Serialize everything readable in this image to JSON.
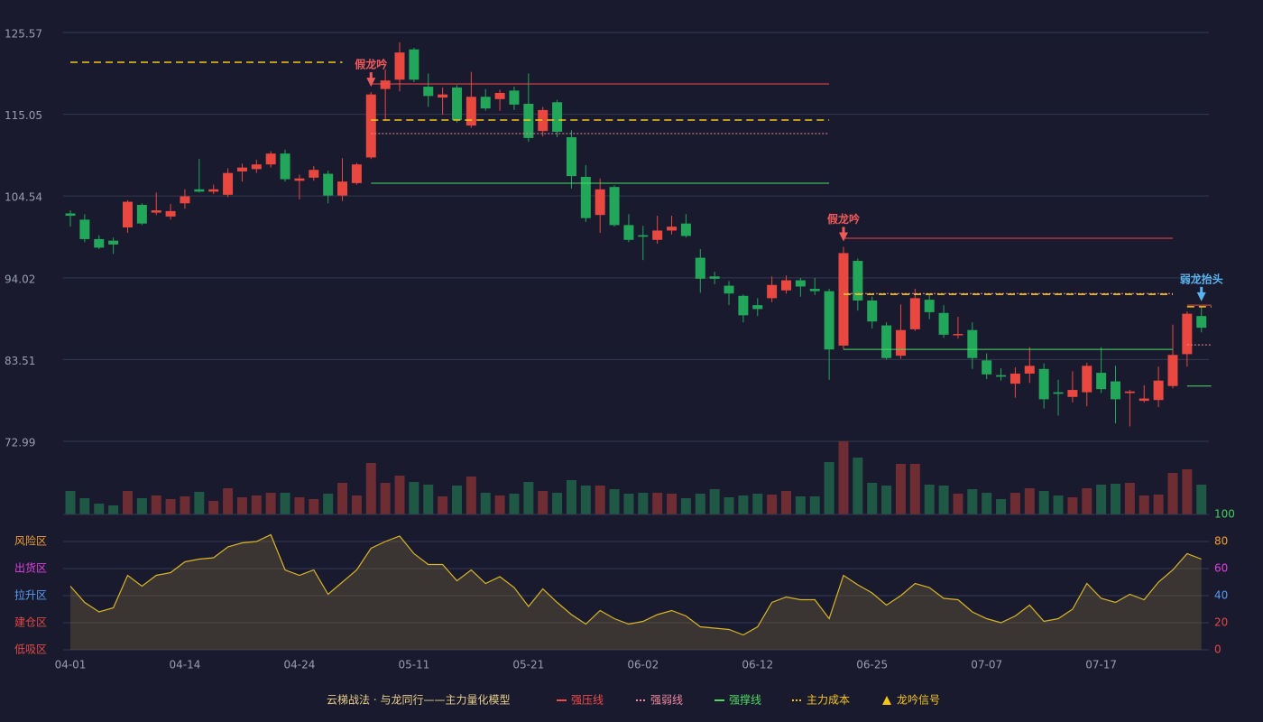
{
  "chart_data": {
    "type": "candlestick",
    "title": "云梯战法 · 与龙同行——主力量化模型",
    "categories": [
      "04-01",
      null,
      null,
      null,
      null,
      null,
      null,
      null,
      "04-14",
      null,
      null,
      null,
      null,
      null,
      null,
      null,
      "04-24",
      null,
      null,
      null,
      null,
      null,
      null,
      null,
      "05-11",
      null,
      null,
      null,
      null,
      null,
      null,
      null,
      "05-21",
      null,
      null,
      null,
      null,
      null,
      null,
      null,
      "06-02",
      null,
      null,
      null,
      null,
      null,
      null,
      null,
      "06-12",
      null,
      null,
      null,
      null,
      null,
      null,
      null,
      "06-25",
      null,
      null,
      null,
      null,
      null,
      null,
      null,
      "07-07",
      null,
      null,
      null,
      null,
      null,
      null,
      null,
      "07-17",
      null,
      null,
      null,
      null,
      null,
      null,
      null
    ],
    "open": [
      102.3,
      101.5,
      99.0,
      98.8,
      100.5,
      103.4,
      102.4,
      101.9,
      103.6,
      105.4,
      105.1,
      104.7,
      107.7,
      108.0,
      108.6,
      110.0,
      106.5,
      106.9,
      107.4,
      104.6,
      106.2,
      109.5,
      118.3,
      119.5,
      123.4,
      118.6,
      117.2,
      118.5,
      113.6,
      117.3,
      117.0,
      118.1,
      116.4,
      112.9,
      116.6,
      112.1,
      107.0,
      102.1,
      105.7,
      100.8,
      99.5,
      98.9,
      100.1,
      101.0,
      96.6,
      94.2,
      93.0,
      91.7,
      90.5,
      91.4,
      92.4,
      93.7,
      92.6,
      92.3,
      85.3,
      96.2,
      91.1,
      87.9,
      84.0,
      87.4,
      91.2,
      89.5,
      86.7,
      87.3,
      83.4,
      81.5,
      80.4,
      81.7,
      82.3,
      79.3,
      78.7,
      79.3,
      81.8,
      80.7,
      79.2,
      78.2,
      78.3,
      80.1,
      84.2,
      89.1
    ],
    "high": [
      102.7,
      102.2,
      99.5,
      99.2,
      104.0,
      103.6,
      105.0,
      103.5,
      105.4,
      109.3,
      106.0,
      108.1,
      108.7,
      109.2,
      110.3,
      110.5,
      107.3,
      108.4,
      107.8,
      109.4,
      108.8,
      117.9,
      120.8,
      124.3,
      123.6,
      120.3,
      118.5,
      118.8,
      120.5,
      118.3,
      118.2,
      118.6,
      120.3,
      116.0,
      116.9,
      113.0,
      108.5,
      106.8,
      105.9,
      102.2,
      100.7,
      102.0,
      102.0,
      102.2,
      97.7,
      94.8,
      93.6,
      91.9,
      91.4,
      94.2,
      94.3,
      94.0,
      94.0,
      92.6,
      98.0,
      96.5,
      91.6,
      88.3,
      90.6,
      92.6,
      92.0,
      90.5,
      89.0,
      88.3,
      84.3,
      82.4,
      82.5,
      85.1,
      83.0,
      80.9,
      82.0,
      83.1,
      85.1,
      82.7,
      79.6,
      80.2,
      82.6,
      88.0,
      89.7,
      90.3
    ],
    "low": [
      100.6,
      98.6,
      97.7,
      97.1,
      99.8,
      100.8,
      102.1,
      101.5,
      102.9,
      105.0,
      104.8,
      104.4,
      106.4,
      107.5,
      108.2,
      106.4,
      104.1,
      106.5,
      103.6,
      103.9,
      106.0,
      109.3,
      114.2,
      118.0,
      119.2,
      116.0,
      115.0,
      114.0,
      113.3,
      115.5,
      115.5,
      115.6,
      111.5,
      112.2,
      112.1,
      105.5,
      101.2,
      99.8,
      100.6,
      98.6,
      96.3,
      98.4,
      99.6,
      99.2,
      92.1,
      93.2,
      90.5,
      88.3,
      89.1,
      90.9,
      92.0,
      91.6,
      91.8,
      80.9,
      84.8,
      89.8,
      87.5,
      83.5,
      83.6,
      87.2,
      88.7,
      86.3,
      86.2,
      82.3,
      81.0,
      80.8,
      78.6,
      80.5,
      77.2,
      76.3,
      78.0,
      77.5,
      79.2,
      75.3,
      74.9,
      78.0,
      77.4,
      79.8,
      82.6,
      87.0
    ],
    "close": [
      102.0,
      99.0,
      97.9,
      98.3,
      103.8,
      101.0,
      102.7,
      102.6,
      104.5,
      105.1,
      105.4,
      107.5,
      108.2,
      108.6,
      110.0,
      106.7,
      106.8,
      107.9,
      104.6,
      106.4,
      108.6,
      117.6,
      119.4,
      123.0,
      119.5,
      117.4,
      117.6,
      114.3,
      117.3,
      115.8,
      117.8,
      116.3,
      112.0,
      115.6,
      112.8,
      107.1,
      101.7,
      105.4,
      100.8,
      98.9,
      99.3,
      100.1,
      100.6,
      99.4,
      93.9,
      93.9,
      92.0,
      89.2,
      90.0,
      93.1,
      93.7,
      92.9,
      92.3,
      84.8,
      97.2,
      91.1,
      88.4,
      83.7,
      87.3,
      91.4,
      89.6,
      86.7,
      86.8,
      83.7,
      81.6,
      81.3,
      81.7,
      82.7,
      78.4,
      79.1,
      79.6,
      82.7,
      79.7,
      78.4,
      79.4,
      78.5,
      80.8,
      84.1,
      89.4,
      87.6
    ],
    "up_color": "#e8483f",
    "down_color": "#22a75a",
    "ylim": [
      72.99,
      125.57
    ],
    "yticks": [
      72.99,
      83.51,
      94.02,
      104.54,
      115.05,
      125.57
    ],
    "grid": true,
    "lines": [
      {
        "name": "强压线",
        "color": "#ef4b4b",
        "style": "solid",
        "segments": [
          {
            "value": 118.96,
            "from": 21,
            "to": 53
          },
          {
            "value": 99.1,
            "from": 54,
            "to": 77
          },
          {
            "value": 90.5,
            "from": 78,
            "to": 79
          }
        ]
      },
      {
        "name": "强弱线",
        "color": "#f08aa0",
        "style": "dotted",
        "segments": [
          {
            "value": 112.57,
            "from": 21,
            "to": 53
          },
          {
            "value": 92.0,
            "from": 54,
            "to": 77
          },
          {
            "value": 85.4,
            "from": 78,
            "to": 79
          }
        ]
      },
      {
        "name": "强撑线",
        "color": "#4cd964",
        "style": "solid",
        "segments": [
          {
            "value": 106.18,
            "from": 21,
            "to": 53
          },
          {
            "value": 84.82,
            "from": 54,
            "to": 77
          },
          {
            "value": 80.1,
            "from": 78,
            "to": 79
          }
        ]
      },
      {
        "name": "主力成本",
        "color": "#f5c518",
        "style": "dashed",
        "segments": [
          {
            "value": 121.74,
            "from": 0,
            "to": 19
          },
          {
            "value": 114.31,
            "from": 21,
            "to": 53
          },
          {
            "value": 91.9,
            "from": 54,
            "to": 77
          },
          {
            "value": 90.3,
            "from": 78,
            "to": 79
          }
        ]
      }
    ],
    "signal_legend": "龙吟信号",
    "signal_legend_color": "#f5c518",
    "signals": [
      {
        "index": 21,
        "label": "假龙吟",
        "color": "#ef5a5a"
      },
      {
        "index": 54,
        "label": "假龙吟",
        "color": "#ef5a5a"
      },
      {
        "index": 79,
        "label": "弱龙抬头",
        "color": "#5ab4f0"
      }
    ],
    "volume": {
      "type": "bar",
      "values": [
        26,
        18,
        12,
        10,
        26,
        18,
        21,
        17,
        20,
        25,
        15,
        29,
        19,
        21,
        24,
        24,
        19,
        17,
        23,
        35,
        21,
        57,
        35,
        43,
        36,
        33,
        20,
        32,
        42,
        24,
        21,
        23,
        36,
        26,
        24,
        38,
        32,
        32,
        28,
        23,
        24,
        24,
        23,
        18,
        23,
        28,
        19,
        21,
        23,
        22,
        26,
        20,
        20,
        58,
        81,
        63,
        35,
        32,
        56,
        56,
        33,
        32,
        23,
        28,
        24,
        17,
        24,
        29,
        26,
        21,
        19,
        29,
        33,
        34,
        35,
        21,
        22,
        46,
        50,
        33
      ],
      "up_color": "#6e2c33",
      "down_color": "#1f5844"
    },
    "oscillator": {
      "type": "line",
      "values": [
        47,
        35,
        28,
        31,
        55,
        47,
        55,
        57,
        65,
        67,
        68,
        76,
        79,
        80,
        85,
        59,
        55,
        59,
        41,
        50,
        59,
        75,
        80,
        84,
        71,
        63,
        63,
        51,
        59,
        49,
        54,
        46,
        32,
        45,
        35,
        26,
        19,
        29,
        23,
        19,
        21,
        26,
        29,
        25,
        17,
        16,
        15,
        11,
        17,
        35,
        39,
        37,
        37,
        23,
        55,
        48,
        42,
        33,
        40,
        49,
        46,
        38,
        37,
        28,
        23,
        20,
        25,
        33,
        21,
        23,
        30,
        49,
        38,
        35,
        41,
        37,
        50,
        59,
        71,
        67
      ],
      "color": "#d9b526",
      "ylim": [
        0,
        100
      ],
      "yticks": [
        0,
        20,
        40,
        60,
        80,
        100
      ],
      "ytick_colors": [
        "#e04848",
        "#e04848",
        "#5a9cf0",
        "#e040e0",
        "#f0a030",
        "#3ed15a"
      ],
      "zones": [
        {
          "label": "风险区",
          "value": 80,
          "color": "#f0a030"
        },
        {
          "label": "出货区",
          "value": 60,
          "color": "#e040e0"
        },
        {
          "label": "拉升区",
          "value": 40,
          "color": "#5a9cf0"
        },
        {
          "label": "建仓区",
          "value": 20,
          "color": "#e04848"
        },
        {
          "label": "低吸区",
          "value": 0,
          "color": "#e04848"
        }
      ]
    }
  }
}
